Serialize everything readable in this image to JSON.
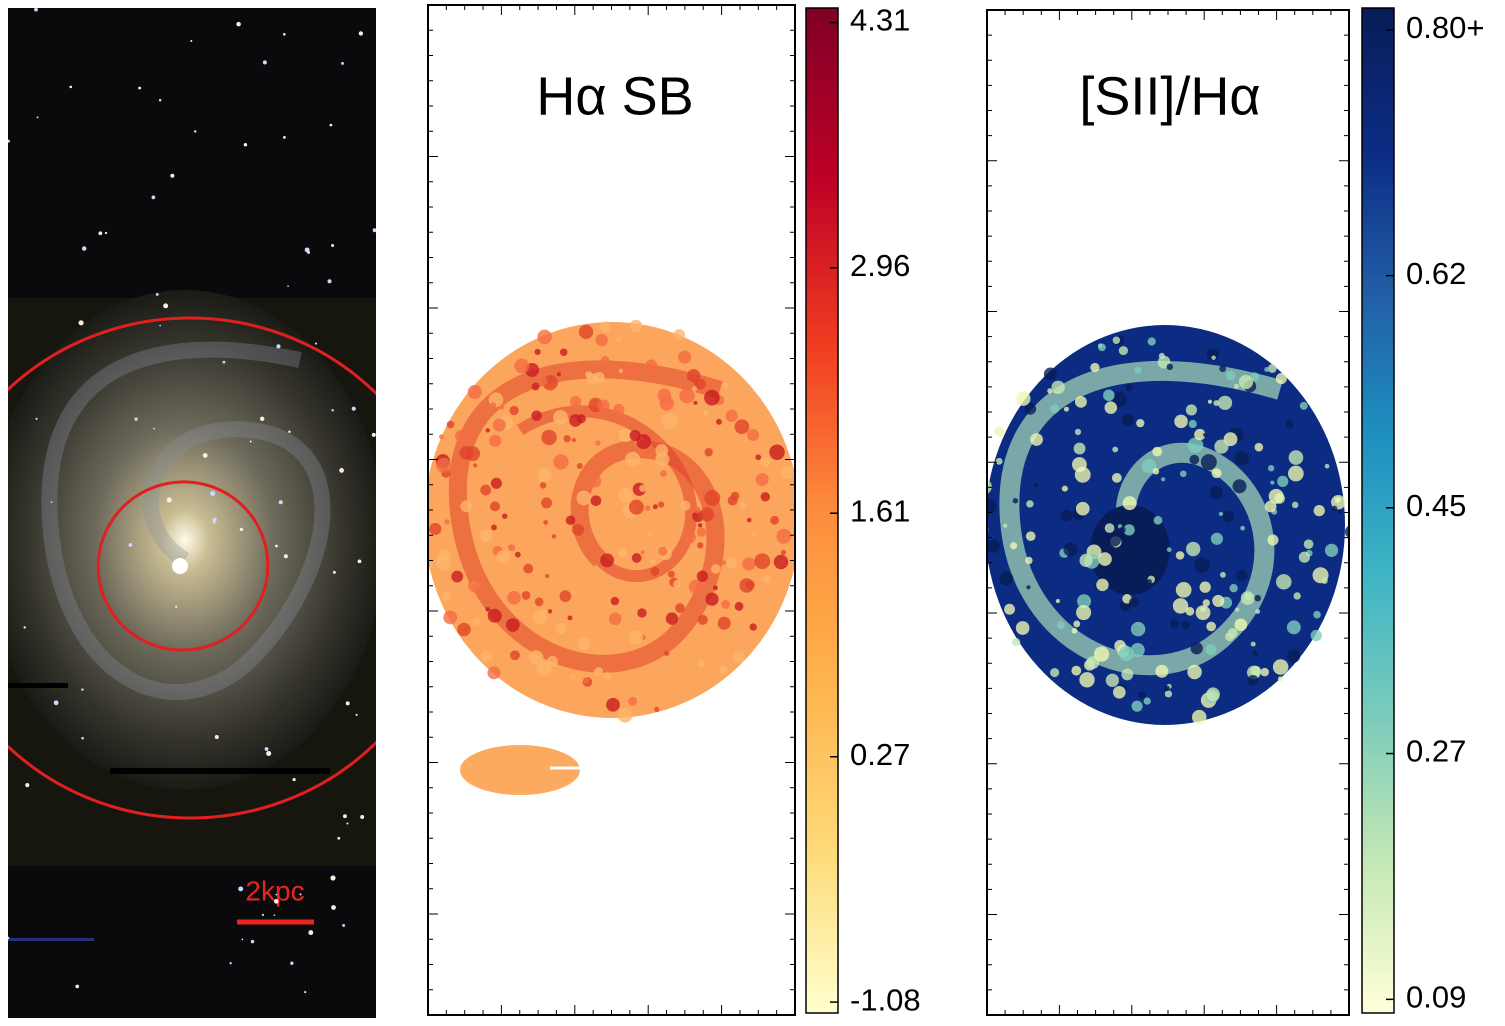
{
  "chart_data": [
    {
      "type": "image",
      "annotation": "2kpc",
      "annotation_color": "#e8261f"
    },
    {
      "type": "heatmap",
      "title": "Hα SB",
      "clim": [
        -1.14,
        4.39
      ],
      "cticks": [
        -1.08,
        0.27,
        1.61,
        2.96,
        4.31
      ],
      "colormap": [
        "#ffffcc",
        "#fed976",
        "#feb24c",
        "#fd8d3c",
        "#f03b20",
        "#bd0026",
        "#800026"
      ]
    },
    {
      "type": "heatmap",
      "title": "[SII]/Hα",
      "clim": [
        0.08,
        0.816
      ],
      "cticks": [
        0.09,
        0.27,
        0.45,
        0.62,
        {
          "value": 0.8,
          "label": "0.80+"
        }
      ],
      "colormap": [
        "#ffffd9",
        "#c7e9b4",
        "#7fcdbb",
        "#41b6c4",
        "#1d91c0",
        "#225ea8",
        "#0c2c84",
        "#081d58"
      ]
    }
  ]
}
